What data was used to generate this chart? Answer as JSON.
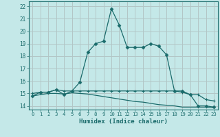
{
  "xlabel": "Humidex (Indice chaleur)",
  "xlim": [
    -0.5,
    23.5
  ],
  "ylim": [
    13.7,
    22.4
  ],
  "xticks": [
    0,
    1,
    2,
    3,
    4,
    5,
    6,
    7,
    8,
    9,
    10,
    11,
    12,
    13,
    14,
    15,
    16,
    17,
    18,
    19,
    20,
    21,
    22,
    23
  ],
  "yticks": [
    14,
    15,
    16,
    17,
    18,
    19,
    20,
    21,
    22
  ],
  "bg_color": "#c4e8e8",
  "grid_color_major": "#b0d4d4",
  "grid_color_minor": "#e8c0c0",
  "line_color": "#1a6b6b",
  "line1_x": [
    0,
    1,
    2,
    3,
    4,
    5,
    6,
    7,
    8,
    9,
    10,
    11,
    12,
    13,
    14,
    15,
    16,
    17,
    18,
    19,
    20,
    21,
    22,
    23
  ],
  "line1_y": [
    14.8,
    15.1,
    15.1,
    15.3,
    14.9,
    15.2,
    15.9,
    18.3,
    19.0,
    19.2,
    21.8,
    20.5,
    18.7,
    18.7,
    18.7,
    19.0,
    18.8,
    18.1,
    15.2,
    15.2,
    14.9,
    14.0,
    14.0,
    13.9
  ],
  "line2_x": [
    0,
    1,
    2,
    3,
    4,
    5,
    6,
    7,
    8,
    9,
    10,
    11,
    12,
    13,
    14,
    15,
    16,
    17,
    18,
    19,
    20,
    21,
    22,
    23
  ],
  "line2_y": [
    15.0,
    15.1,
    15.1,
    15.3,
    15.2,
    15.2,
    15.2,
    15.2,
    15.2,
    15.2,
    15.2,
    15.2,
    15.2,
    15.2,
    15.2,
    15.2,
    15.2,
    15.2,
    15.2,
    15.1,
    14.9,
    14.9,
    14.5,
    14.4
  ],
  "line3_x": [
    0,
    1,
    2,
    3,
    4,
    5,
    6,
    7,
    8,
    9,
    10,
    11,
    12,
    13,
    14,
    15,
    16,
    17,
    18,
    19,
    20,
    21,
    22,
    23
  ],
  "line3_y": [
    14.8,
    14.9,
    15.0,
    15.0,
    14.95,
    15.05,
    15.0,
    14.95,
    14.85,
    14.75,
    14.65,
    14.55,
    14.45,
    14.35,
    14.3,
    14.2,
    14.1,
    14.05,
    14.0,
    13.9,
    13.9,
    13.9,
    13.9,
    13.85
  ]
}
